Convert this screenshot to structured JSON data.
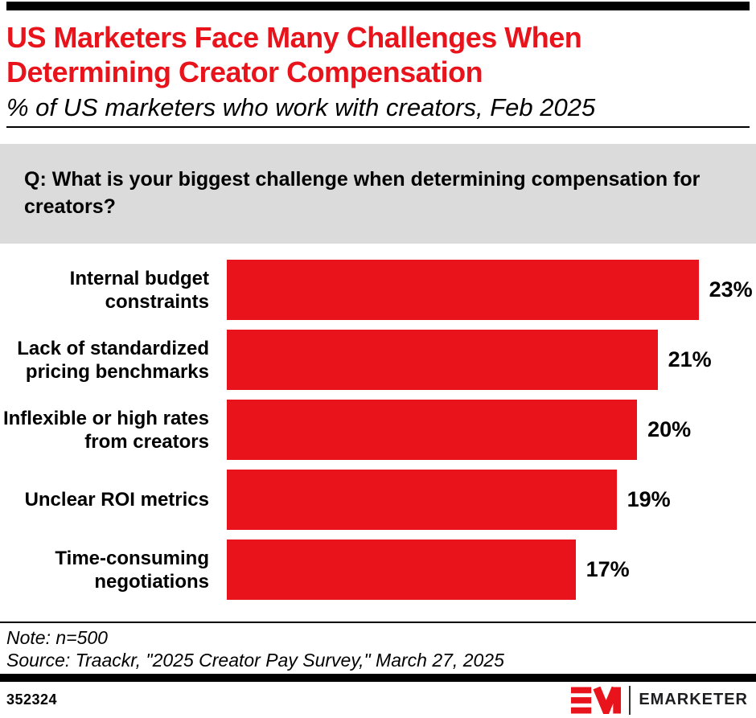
{
  "colors": {
    "accent_red": "#E8131B",
    "question_bg": "#DBDBDB",
    "top_bar": "#000000",
    "brand_text": "#1E1E21"
  },
  "header": {
    "title_lines": [
      "US Marketers Face Many Challenges When",
      "Determining Creator Compensation"
    ],
    "subtitle": "% of US marketers who work with creators, Feb 2025"
  },
  "question": {
    "text": "Q: What is your biggest challenge when determining compensation for creators?"
  },
  "chart_data": {
    "type": "bar",
    "orientation": "horizontal",
    "title": "US Marketers Face Many Challenges When Determining Creator Compensation",
    "subtitle": "% of US marketers who work with creators, Feb 2025",
    "categories": [
      "Internal budget constraints",
      "Lack of standardized pricing benchmarks",
      "Inflexible or high rates from creators",
      "Unclear ROI metrics",
      "Time-consuming negotiations"
    ],
    "category_lines": [
      [
        "Internal budget",
        "constraints"
      ],
      [
        "Lack of standardized",
        "pricing benchmarks"
      ],
      [
        "Inflexible or high rates",
        "from creators"
      ],
      [
        "Unclear ROI metrics"
      ],
      [
        "Time-consuming",
        "negotiations"
      ]
    ],
    "values": [
      23,
      21,
      20,
      19,
      17
    ],
    "value_suffix": "%",
    "xlim": [
      0,
      25.8
    ],
    "grid": false,
    "legend": "none",
    "data_labels": true,
    "bar_color": "#E8131B"
  },
  "notes": {
    "note": "Note: n=500",
    "source": "Source: Traackr, \"2025 Creator Pay Survey,\" March 27, 2025"
  },
  "footer": {
    "chart_id": "352324",
    "brand": "EMARKETER"
  }
}
